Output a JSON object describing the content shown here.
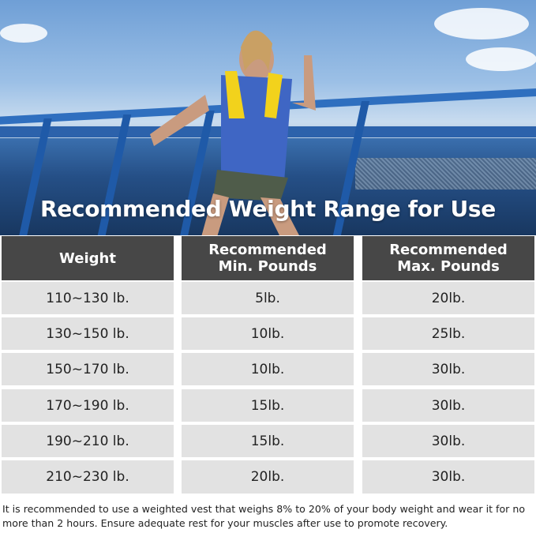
{
  "title": "Recommended Weight Range for Use",
  "table": {
    "headers": [
      "Weight",
      "Recommended\nMin. Pounds",
      "Recommended\nMax. Pounds"
    ],
    "rows": [
      [
        "110~130 lb.",
        "5lb.",
        "20lb."
      ],
      [
        "130~150 lb.",
        "10lb.",
        "25lb."
      ],
      [
        "150~170 lb.",
        "10lb.",
        "30lb."
      ],
      [
        "170~190 lb.",
        "15lb.",
        "30lb."
      ],
      [
        "190~210 lb.",
        "15lb.",
        "30lb."
      ],
      [
        "210~230 lb.",
        "20lb.",
        "30lb."
      ]
    ]
  },
  "note": "It is recommended to use a weighted vest that weighs 8% to 20% of your body weight and wear it for no more than 2 hours. Ensure adequate rest for your muscles after use to promote recovery.",
  "colors": {
    "header_bg": "#474747",
    "row_bg": "#e2e2e2",
    "vest": "#f2d21c"
  }
}
